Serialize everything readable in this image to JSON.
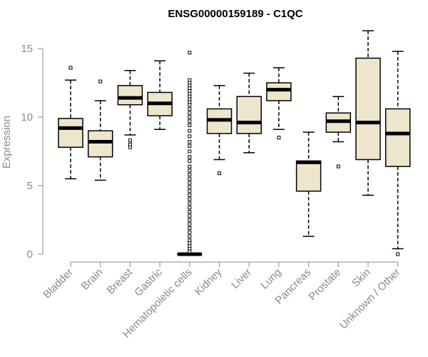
{
  "chart_data": {
    "type": "boxplot",
    "title": "ENSG00000159189 - C1QC",
    "xlabel": "",
    "ylabel": "Expression",
    "ylim": [
      0,
      15.5
    ],
    "yticks": [
      0,
      5,
      10,
      15
    ],
    "box_color": "#ede6cc",
    "categories": [
      "Bladder",
      "Brain",
      "Breast",
      "Gastric",
      "Hematopoietic cells",
      "Kidney",
      "Liver",
      "Lung",
      "Pancreas",
      "Prostate",
      "Skin",
      "Unknown / Other"
    ],
    "boxes": [
      {
        "min": 5.5,
        "q1": 7.8,
        "median": 9.2,
        "q3": 9.9,
        "max": 12.7,
        "outliers": [
          13.6
        ]
      },
      {
        "min": 5.4,
        "q1": 7.1,
        "median": 8.2,
        "q3": 9.0,
        "max": 11.2,
        "outliers": [
          12.6
        ]
      },
      {
        "min": 8.7,
        "q1": 10.9,
        "median": 11.4,
        "q3": 12.3,
        "max": 13.4,
        "outliers": [
          8.3,
          8.0,
          7.8
        ]
      },
      {
        "min": 9.1,
        "q1": 10.1,
        "median": 11.0,
        "q3": 11.8,
        "max": 14.1,
        "outliers": []
      },
      {
        "min": 0.0,
        "q1": 0.0,
        "median": 0.0,
        "q3": 0.0,
        "max": 0.0,
        "outliers": [
          14.7,
          12.7,
          12.5,
          12.3,
          12.1,
          11.9,
          11.7,
          11.5,
          11.3,
          11.1,
          10.9,
          10.6,
          10.3,
          10.0,
          9.7,
          9.4,
          9.0,
          8.6,
          8.2,
          7.9,
          7.5,
          7.1,
          6.8,
          6.4,
          6.1,
          5.8,
          5.5,
          5.2,
          4.9,
          4.6,
          4.3,
          4.0,
          3.7,
          3.4,
          3.1,
          2.8,
          2.5,
          2.2,
          1.9,
          1.6,
          1.3,
          1.0,
          0.8,
          0.6,
          0.4,
          0.2
        ]
      },
      {
        "min": 6.9,
        "q1": 8.8,
        "median": 9.8,
        "q3": 10.6,
        "max": 12.3,
        "outliers": [
          5.9
        ]
      },
      {
        "min": 7.4,
        "q1": 8.8,
        "median": 9.6,
        "q3": 11.5,
        "max": 13.2,
        "outliers": []
      },
      {
        "min": 9.1,
        "q1": 11.2,
        "median": 12.0,
        "q3": 12.5,
        "max": 13.6,
        "outliers": [
          8.5
        ]
      },
      {
        "min": 1.3,
        "q1": 4.6,
        "median": 6.7,
        "q3": 6.8,
        "max": 8.9,
        "outliers": []
      },
      {
        "min": 8.2,
        "q1": 8.9,
        "median": 9.7,
        "q3": 10.3,
        "max": 11.5,
        "outliers": [
          6.4
        ]
      },
      {
        "min": 4.3,
        "q1": 6.9,
        "median": 9.6,
        "q3": 14.3,
        "max": 16.3,
        "outliers": []
      },
      {
        "min": 0.4,
        "q1": 6.4,
        "median": 8.8,
        "q3": 10.6,
        "max": 14.8,
        "outliers": [
          0.0
        ]
      }
    ]
  }
}
